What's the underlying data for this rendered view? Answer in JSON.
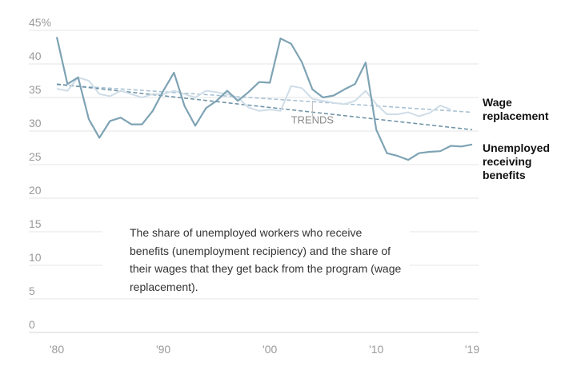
{
  "chart_data": {
    "type": "line",
    "title": "",
    "xlabel": "",
    "ylabel": "",
    "x": [
      1980,
      1981,
      1982,
      1983,
      1984,
      1985,
      1986,
      1987,
      1988,
      1989,
      1990,
      1991,
      1992,
      1993,
      1994,
      1995,
      1996,
      1997,
      1998,
      1999,
      2000,
      2001,
      2002,
      2003,
      2004,
      2005,
      2006,
      2007,
      2008,
      2009,
      2010,
      2011,
      2012,
      2013,
      2014,
      2015,
      2016,
      2017,
      2018,
      2019
    ],
    "xlim": [
      1980,
      2019
    ],
    "ylim": [
      0,
      45
    ],
    "x_ticks": [
      {
        "value": 1980,
        "label": "'80"
      },
      {
        "value": 1990,
        "label": "'90"
      },
      {
        "value": 2000,
        "label": "'00"
      },
      {
        "value": 2010,
        "label": "'10"
      },
      {
        "value": 2019,
        "label": "'19"
      }
    ],
    "y_ticks": [
      {
        "value": 0,
        "label": "0"
      },
      {
        "value": 5,
        "label": "5"
      },
      {
        "value": 10,
        "label": "10"
      },
      {
        "value": 15,
        "label": "15"
      },
      {
        "value": 20,
        "label": "20"
      },
      {
        "value": 25,
        "label": "25"
      },
      {
        "value": 30,
        "label": "30"
      },
      {
        "value": 35,
        "label": "35"
      },
      {
        "value": 40,
        "label": "40"
      },
      {
        "value": 45,
        "label": "45%"
      }
    ],
    "grid": true,
    "series": [
      {
        "name": "Wage replacement",
        "color": "#cfdde8",
        "values": [
          36.3,
          36.0,
          38.0,
          37.5,
          35.5,
          35.2,
          36.0,
          35.5,
          35.0,
          35.5,
          35.5,
          36.0,
          35.5,
          35.0,
          36.0,
          35.8,
          35.5,
          35.0,
          33.5,
          33.0,
          33.2,
          33.0,
          36.7,
          36.4,
          34.8,
          34.5,
          34.2,
          34.0,
          34.5,
          36.0,
          34.0,
          32.5,
          32.5,
          32.8,
          32.2,
          32.7,
          33.8,
          33.2,
          null,
          null
        ]
      },
      {
        "name": "Unemployed receiving benefits",
        "color": "#7ea3b4",
        "values": [
          44.0,
          37.0,
          38.0,
          31.8,
          29.0,
          31.5,
          32.0,
          31.0,
          31.0,
          33.0,
          36.0,
          38.7,
          33.7,
          30.8,
          33.4,
          34.5,
          36.0,
          34.5,
          35.8,
          37.3,
          37.2,
          43.8,
          43.0,
          40.3,
          36.2,
          35.0,
          35.3,
          36.2,
          37.0,
          40.2,
          30.2,
          26.7,
          26.3,
          25.7,
          26.7,
          26.9,
          27.0,
          27.8,
          27.7,
          28.0
        ]
      }
    ],
    "trend_lines": [
      {
        "series": "Wage replacement",
        "color": "#a8c2d4",
        "from": [
          1980,
          36.9
        ],
        "to": [
          2019,
          32.8
        ]
      },
      {
        "series": "Unemployed receiving benefits",
        "color": "#6e93a6",
        "from": [
          1980,
          37.0
        ],
        "to": [
          2019,
          30.2
        ]
      }
    ],
    "series_labels": [
      {
        "series": "Wage replacement",
        "lines": [
          "Wage",
          "replacement"
        ]
      },
      {
        "series": "Unemployed receiving benefits",
        "lines": [
          "Unemployed",
          "receiving",
          "benefits"
        ]
      }
    ],
    "annotation": {
      "label": "TRENDS",
      "year": 2004,
      "value": 31
    }
  },
  "note": "The share of unemployed workers who receive benefits (unemployment recipiency) and the share of their wages that they get back from the program (wage replacement)."
}
